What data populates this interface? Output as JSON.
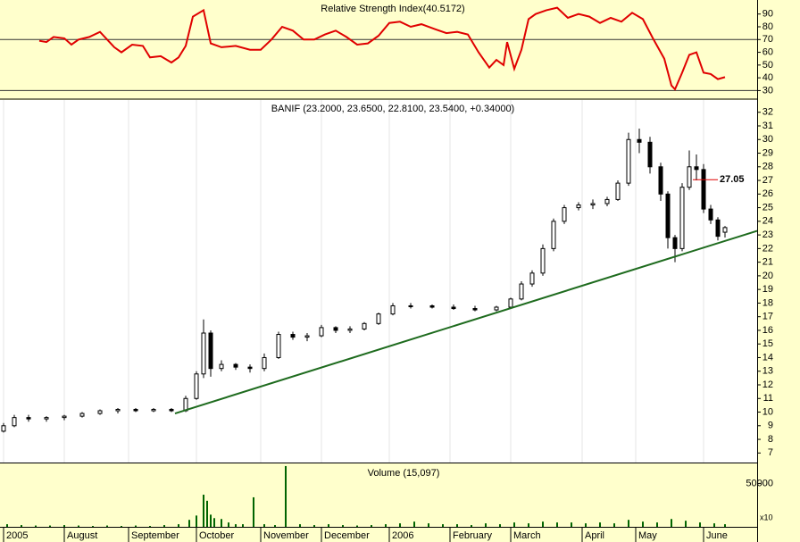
{
  "chart_data": [
    {
      "type": "line",
      "title": "Relative Strength Index(40.5172)",
      "color": "#e00000",
      "x": [
        11,
        13,
        15,
        18,
        20,
        22,
        25,
        28,
        30,
        32,
        34,
        37,
        40,
        42,
        45,
        48,
        50,
        52,
        54,
        57,
        59,
        62,
        66,
        70,
        73,
        76,
        79,
        82,
        85,
        88,
        91,
        94,
        97,
        100,
        103,
        106,
        109,
        112,
        115,
        118,
        122,
        125,
        128,
        131,
        134,
        137,
        139,
        141,
        142,
        144,
        146,
        148,
        150,
        153,
        156,
        159,
        162,
        165,
        168,
        171,
        174,
        177,
        180,
        183,
        186,
        188,
        189,
        191,
        193,
        195,
        197,
        199,
        201,
        203
      ],
      "values": [
        69,
        68,
        72,
        71,
        66,
        70,
        72,
        76,
        70,
        64,
        60,
        66,
        65,
        56,
        57,
        52,
        56,
        65,
        88,
        93,
        67,
        64,
        65,
        62,
        62,
        70,
        80,
        77,
        70,
        70,
        74,
        77,
        72,
        66,
        67,
        73,
        83,
        84,
        80,
        82,
        78,
        75,
        76,
        74,
        60,
        48,
        54,
        50,
        68,
        47,
        62,
        86,
        90,
        93,
        95,
        87,
        90,
        88,
        83,
        87,
        84,
        91,
        86,
        70,
        55,
        34,
        31,
        44,
        58,
        60,
        44,
        43,
        39,
        40.5172
      ],
      "xlim": [
        0,
        212
      ],
      "ylim": [
        24,
        101
      ],
      "yticks": [
        30,
        40,
        50,
        60,
        70,
        80,
        90
      ],
      "reference_lines": [
        70,
        30
      ]
    },
    {
      "type": "candlestick",
      "title": "BANIF (23.2000, 23.6500, 22.8100, 23.5400, +0.34000)",
      "grid": true,
      "x": [
        1,
        4,
        8,
        13,
        18,
        23,
        28,
        33,
        38,
        43,
        48,
        52,
        55,
        57,
        59,
        62,
        66,
        70,
        74,
        78,
        82,
        86,
        90,
        94,
        98,
        102,
        106,
        110,
        115,
        121,
        127,
        133,
        139,
        143,
        146,
        149,
        152,
        155,
        158,
        162,
        166,
        170,
        173,
        176,
        179,
        182,
        185,
        187,
        189,
        191,
        193,
        195,
        197,
        199,
        201,
        203
      ],
      "open": [
        8.6,
        9.0,
        9.6,
        9.5,
        9.6,
        9.7,
        9.9,
        10.1,
        10.2,
        10.1,
        10.2,
        10.1,
        11.0,
        12.8,
        15.8,
        13.2,
        13.5,
        13.3,
        13.2,
        14.0,
        15.7,
        15.5,
        15.6,
        16.2,
        16.0,
        16.1,
        16.5,
        17.2,
        17.8,
        17.8,
        17.7,
        17.6,
        17.5,
        17.7,
        18.3,
        19.4,
        20.2,
        22.0,
        24.0,
        25.0,
        25.2,
        25.3,
        25.6,
        26.8,
        30.0,
        29.8,
        28.0,
        26.0,
        22.8,
        22.0,
        26.5,
        28.0,
        27.8,
        24.9,
        24.1,
        23.2
      ],
      "high": [
        9.2,
        9.8,
        9.8,
        9.7,
        9.8,
        10.0,
        10.2,
        10.3,
        10.3,
        10.3,
        10.3,
        11.2,
        13.0,
        16.8,
        16.0,
        13.8,
        13.6,
        13.5,
        14.3,
        15.9,
        15.9,
        15.8,
        16.4,
        16.3,
        16.3,
        16.6,
        17.3,
        18.0,
        18.0,
        17.9,
        17.9,
        17.8,
        17.8,
        18.4,
        19.6,
        20.4,
        22.3,
        24.2,
        25.2,
        25.4,
        25.6,
        25.8,
        27.0,
        30.5,
        30.8,
        30.2,
        28.3,
        26.2,
        23.0,
        26.8,
        29.2,
        28.9,
        28.2,
        25.2,
        24.3,
        23.65
      ],
      "low": [
        8.5,
        8.9,
        9.3,
        9.3,
        9.4,
        9.6,
        9.8,
        9.9,
        10.0,
        10.0,
        10.0,
        10.0,
        10.9,
        12.5,
        12.6,
        13.0,
        13.1,
        12.9,
        13.0,
        13.9,
        15.3,
        15.2,
        15.5,
        15.8,
        15.8,
        16.0,
        16.4,
        17.1,
        17.6,
        17.6,
        17.5,
        17.4,
        17.4,
        17.6,
        18.2,
        19.2,
        20.0,
        21.8,
        23.8,
        24.8,
        24.9,
        25.1,
        25.5,
        26.6,
        29.0,
        27.5,
        25.5,
        22.0,
        21.0,
        21.8,
        26.3,
        27.0,
        24.6,
        23.8,
        22.6,
        22.81
      ],
      "close": [
        9.0,
        9.6,
        9.5,
        9.6,
        9.7,
        9.9,
        10.1,
        10.2,
        10.1,
        10.2,
        10.1,
        11.0,
        12.8,
        15.8,
        13.2,
        13.5,
        13.3,
        13.2,
        14.0,
        15.7,
        15.5,
        15.6,
        16.2,
        16.0,
        16.1,
        16.5,
        17.2,
        17.8,
        17.8,
        17.7,
        17.6,
        17.5,
        17.7,
        18.3,
        19.4,
        20.2,
        22.0,
        24.0,
        25.0,
        25.2,
        25.3,
        25.6,
        26.8,
        30.0,
        29.8,
        28.0,
        26.0,
        22.8,
        22.0,
        26.5,
        28.0,
        27.8,
        24.9,
        24.1,
        22.9,
        23.54
      ],
      "trendline": {
        "color": "#1e6b1e",
        "x": [
          49,
          212
        ],
        "y": [
          9.9,
          23.3
        ]
      },
      "annotations": [
        {
          "label": "27.05",
          "y": 27.05,
          "x": [
            194,
            201
          ],
          "color": "#e00000"
        }
      ],
      "xlim": [
        0,
        212
      ],
      "ylim": [
        6.3,
        32.9
      ],
      "yticks": [
        7,
        8,
        9,
        10,
        11,
        12,
        13,
        14,
        15,
        16,
        17,
        18,
        19,
        20,
        21,
        22,
        23,
        24,
        25,
        26,
        27,
        28,
        29,
        30,
        31,
        32
      ]
    },
    {
      "type": "bar",
      "title": "Volume (15,097)",
      "color": "#006400",
      "unit_label": "x10",
      "x": [
        2,
        6,
        10,
        14,
        18,
        22,
        26,
        30,
        34,
        38,
        42,
        46,
        50,
        53,
        55,
        57,
        58,
        59,
        60,
        62,
        64,
        66,
        68,
        71,
        74,
        77,
        80,
        84,
        88,
        92,
        96,
        100,
        104,
        108,
        112,
        116,
        120,
        124,
        128,
        132,
        136,
        140,
        144,
        148,
        152,
        156,
        160,
        164,
        168,
        172,
        176,
        180,
        184,
        188,
        192,
        196,
        200,
        203
      ],
      "values": [
        3000,
        2000,
        1500,
        1500,
        2000,
        1500,
        1000,
        1500,
        1000,
        1500,
        1000,
        2000,
        3000,
        8000,
        13000,
        37000,
        30000,
        14000,
        10000,
        9000,
        5000,
        3000,
        3000,
        34000,
        3000,
        2000,
        70000,
        3000,
        2000,
        3000,
        2000,
        1500,
        2000,
        3000,
        4000,
        6000,
        4000,
        3000,
        3000,
        2000,
        4000,
        3000,
        5000,
        4000,
        6000,
        5000,
        5000,
        4000,
        5000,
        4000,
        8000,
        6000,
        5000,
        9000,
        7000,
        5000,
        4000,
        3000
      ],
      "xlim": [
        0,
        212
      ],
      "ylim": [
        0,
        72000
      ],
      "yticks": [
        50000
      ],
      "xticks": [
        {
          "value": 1,
          "label": "2005"
        },
        {
          "value": 18,
          "label": "August"
        },
        {
          "value": 36,
          "label": "September"
        },
        {
          "value": 55,
          "label": "October"
        },
        {
          "value": 73,
          "label": "November"
        },
        {
          "value": 90,
          "label": "December"
        },
        {
          "value": 109,
          "label": "2006"
        },
        {
          "value": 126,
          "label": "February"
        },
        {
          "value": 143,
          "label": "March"
        },
        {
          "value": 163,
          "label": "April"
        },
        {
          "value": 178,
          "label": "May"
        },
        {
          "value": 197,
          "label": "June"
        }
      ]
    }
  ]
}
